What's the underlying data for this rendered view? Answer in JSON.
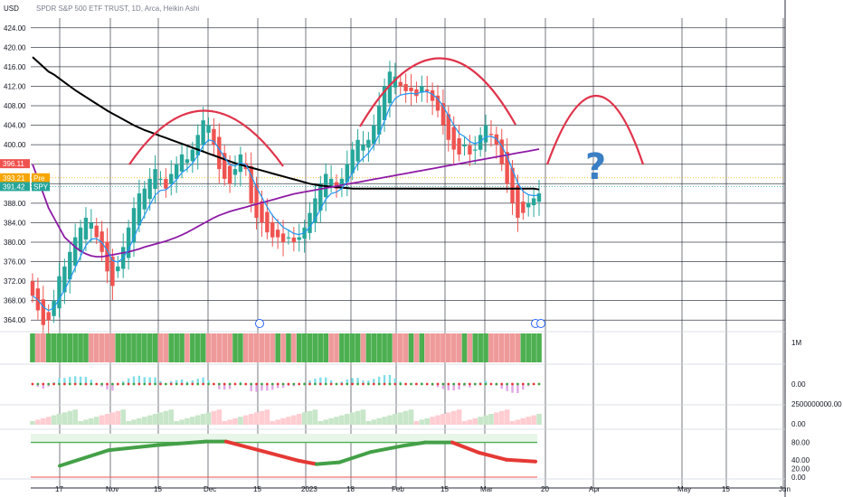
{
  "chart_data": {
    "type": "candlestick",
    "title": "SPDR S&P 500 ETF TRUST, 1D, Arca, Heikin Ashi",
    "currency": "USD",
    "yticks": [
      "424.00",
      "420.00",
      "416.00",
      "412.00",
      "408.00",
      "404.00",
      "400.00",
      "396.00",
      "392.00",
      "388.00",
      "384.00",
      "380.00",
      "376.00",
      "372.00",
      "368.00",
      "364.00"
    ],
    "ylim": [
      362,
      426
    ],
    "xticks": [
      "17",
      "Nov",
      "15",
      "Dec",
      "15",
      "2023",
      "18",
      "Feb",
      "15",
      "Mar",
      "20",
      "Apr",
      "May",
      "15",
      "Jun"
    ],
    "price_badges": [
      {
        "label": "396.11",
        "color": "#ef5350"
      },
      {
        "label": "393.21",
        "tag": "Pre",
        "color": "#f7a600"
      },
      {
        "label": "391.42",
        "tag": "SPY",
        "color": "#26a69a"
      }
    ],
    "closes": [
      369,
      366,
      363,
      364,
      368,
      373,
      375,
      378,
      381,
      383,
      385,
      384,
      381,
      378,
      374,
      371,
      375,
      379,
      383,
      387,
      390,
      391,
      393,
      395,
      393,
      391,
      394,
      396,
      398,
      397,
      399,
      402,
      405,
      404,
      400,
      395,
      393,
      392,
      395,
      398,
      395,
      388,
      385,
      384,
      382,
      381,
      381,
      380,
      381,
      380,
      381,
      383,
      386,
      389,
      392,
      394,
      393,
      391,
      393,
      396,
      399,
      401,
      400,
      401,
      404,
      408,
      412,
      415,
      414,
      412,
      411,
      411,
      410,
      412,
      411,
      409,
      407,
      404,
      401,
      399,
      398,
      400,
      398,
      399,
      402,
      404,
      402,
      400,
      396,
      392,
      388,
      385,
      386,
      388,
      389,
      390
    ],
    "ma_long": [
      418,
      417,
      416,
      415,
      414.4,
      413.6,
      412.8,
      412,
      411.2,
      410.5,
      409.8,
      409.1,
      408.4,
      407.7,
      407,
      406.4,
      405.8,
      405.2,
      404.6,
      404,
      403.5,
      403,
      402.6,
      402.2,
      401.8,
      401.4,
      401,
      400.6,
      400.2,
      399.8,
      399.4,
      399,
      398.6,
      398.2,
      397.8,
      397.4,
      397,
      396.6,
      396.2,
      395.9,
      395.6,
      395.3,
      395,
      394.7,
      394.4,
      394.1,
      393.8,
      393.5,
      393.2,
      392.9,
      392.6,
      392.3,
      392,
      391.8,
      391.6,
      391.5,
      391.4,
      391.3,
      391.2,
      391.1,
      391,
      391,
      391,
      391,
      391,
      391,
      391,
      391,
      391,
      391,
      391,
      391,
      391,
      391,
      391,
      391,
      391,
      391,
      391,
      391,
      391,
      391,
      391,
      391,
      391,
      391,
      391,
      391,
      391,
      391,
      391,
      391,
      391,
      391,
      391,
      390.8
    ],
    "ma_mid": [
      396,
      393,
      390,
      387,
      385,
      383,
      381,
      380,
      379,
      378.2,
      377.6,
      377.2,
      377,
      377,
      377.2,
      377.4,
      377.6,
      377.8,
      378,
      378.3,
      378.6,
      379,
      379.3,
      379.6,
      379.9,
      380.2,
      380.6,
      381,
      381.5,
      382,
      382.6,
      383.2,
      383.8,
      384.4,
      385,
      385.5,
      385.9,
      386.3,
      386.6,
      386.9,
      387.2,
      387.5,
      387.8,
      388.1,
      388.4,
      388.7,
      389,
      389.3,
      389.6,
      389.9,
      390.1,
      390.3,
      390.5,
      390.7,
      390.9,
      391.1,
      391.3,
      391.5,
      391.7,
      391.9,
      392.1,
      392.3,
      392.5,
      392.7,
      392.9,
      393.1,
      393.3,
      393.5,
      393.7,
      393.9,
      394.1,
      394.3,
      394.5,
      394.7,
      394.9,
      395.1,
      395.3,
      395.5,
      395.7,
      395.9,
      396.1,
      396.3,
      396.5,
      396.7,
      396.9,
      397.1,
      397.3,
      397.5,
      397.7,
      397.9,
      398.1,
      398.3,
      398.5,
      398.7,
      398.9,
      399.1
    ],
    "annotations": [
      "?"
    ],
    "volume_label": "1M",
    "macd_label": "0.00",
    "osc_labels": [
      "2500000000.00",
      "0.00"
    ],
    "rsi_labels": [
      "80.00",
      "40.00",
      "20.00",
      "0.00"
    ]
  },
  "colors": {
    "up": "#26a69a",
    "down": "#ef5350",
    "ma_long": "#000000",
    "ma_mid": "#8e1aa6",
    "ma_fast": "#2196f3",
    "arc": "#e0334b",
    "grid": "#2a2e39"
  }
}
